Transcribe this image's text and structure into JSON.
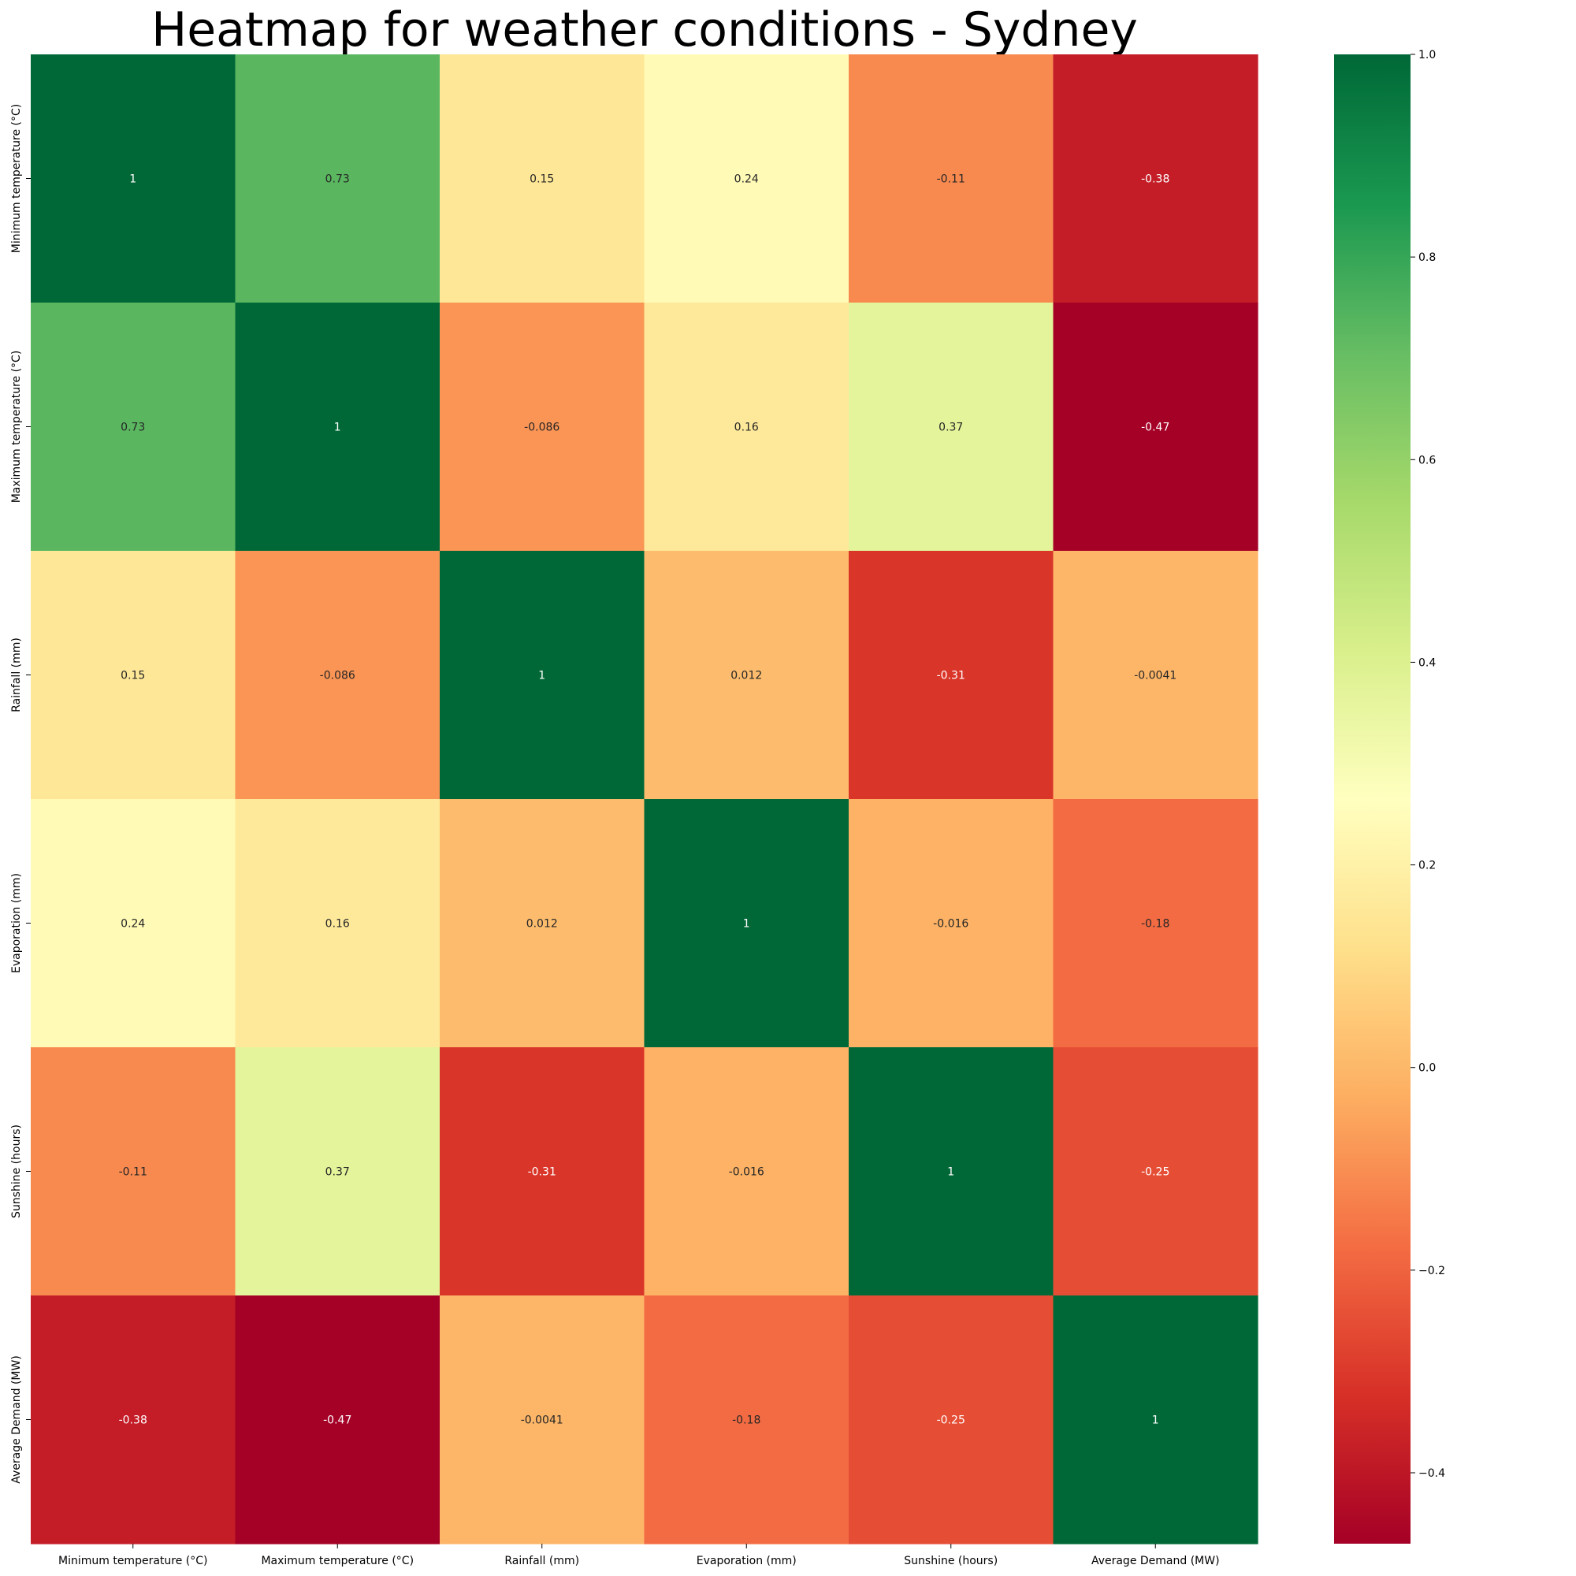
{
  "chart_data": {
    "type": "heatmap",
    "title": "Heatmap for weather conditions - Sydney",
    "xlabel": "",
    "ylabel": "",
    "x_categories": [
      "Minimum temperature (°C)",
      "Maximum temperature (°C)",
      "Rainfall (mm)",
      "Evaporation (mm)",
      "Sunshine (hours)",
      "Average Demand (MW)"
    ],
    "y_categories": [
      "Minimum temperature (°C)",
      "Maximum temperature (°C)",
      "Rainfall (mm)",
      "Evaporation (mm)",
      "Sunshine (hours)",
      "Average Demand (MW)"
    ],
    "values": [
      [
        1,
        0.73,
        0.15,
        0.24,
        -0.11,
        -0.38
      ],
      [
        0.73,
        1,
        -0.086,
        0.16,
        0.37,
        -0.47
      ],
      [
        0.15,
        -0.086,
        1,
        0.012,
        -0.31,
        -0.0041
      ],
      [
        0.24,
        0.16,
        0.012,
        1,
        -0.016,
        -0.18
      ],
      [
        -0.11,
        0.37,
        -0.31,
        -0.016,
        1,
        -0.25
      ],
      [
        -0.38,
        -0.47,
        -0.0041,
        -0.18,
        -0.25,
        1
      ]
    ],
    "annotations": [
      [
        "1",
        "0.73",
        "0.15",
        "0.24",
        "-0.11",
        "-0.38"
      ],
      [
        "0.73",
        "1",
        "-0.086",
        "0.16",
        "0.37",
        "-0.47"
      ],
      [
        "0.15",
        "-0.086",
        "1",
        "0.012",
        "-0.31",
        "-0.0041"
      ],
      [
        "0.24",
        "0.16",
        "0.012",
        "1",
        "-0.016",
        "-0.18"
      ],
      [
        "-0.11",
        "0.37",
        "-0.31",
        "-0.016",
        "1",
        "-0.25"
      ],
      [
        "-0.38",
        "-0.47",
        "-0.0041",
        "-0.18",
        "-0.25",
        "1"
      ]
    ],
    "colormap": "RdYlGn",
    "colorbar": {
      "range": [
        -0.47,
        1.0
      ],
      "ticks": [
        1.0,
        0.8,
        0.6,
        0.4,
        0.2,
        0.0,
        -0.2,
        -0.4
      ],
      "tick_labels": [
        "1.0",
        "0.8",
        "0.6",
        "0.4",
        "0.2",
        "0.0",
        "−0.2",
        "−0.4"
      ]
    },
    "grid": false,
    "legend": "colorbar-right"
  },
  "colors": {
    "stops": [
      "#a50026",
      "#d73027",
      "#f46d43",
      "#fdae61",
      "#fee08b",
      "#ffffbf",
      "#d9ef8b",
      "#a6d96a",
      "#66bd63",
      "#1a9850",
      "#006837"
    ],
    "text_dark": "#262626",
    "text_light": "#ffffff"
  }
}
